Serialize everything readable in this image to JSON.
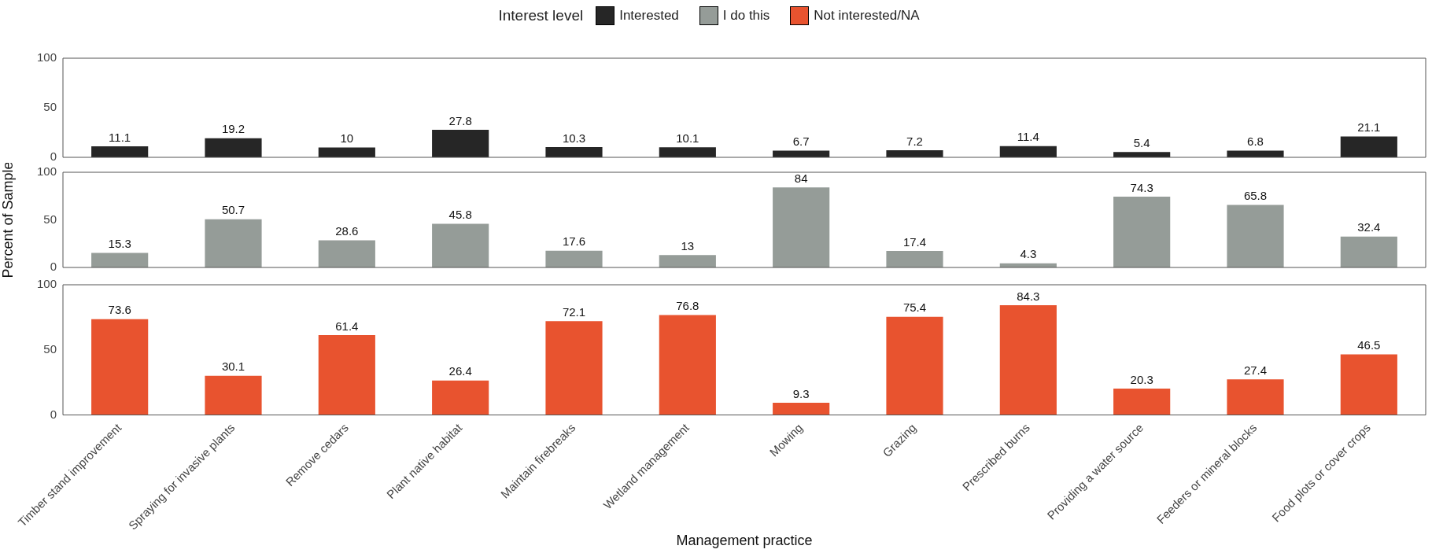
{
  "chart_data": [
    {
      "type": "bar",
      "legend": "top",
      "legend_title": "Interest level",
      "categories": [
        null,
        null,
        null,
        null,
        null,
        null,
        null,
        null,
        null,
        null,
        null,
        null
      ],
      "series": [
        {
          "name": "Interested",
          "color": "#262626",
          "values": [
            11.1,
            19.2,
            10,
            27.8,
            10.3,
            10.1,
            6.7,
            7.2,
            11.4,
            5.4,
            6.8,
            21.1
          ]
        }
      ],
      "ylim": [
        0,
        100
      ],
      "yticks": [
        0,
        50,
        100
      ],
      "tick_labels": "y",
      "data_labels": true
    },
    {
      "type": "bar",
      "ylabel": "Percent of Sample",
      "categories": [
        null,
        null,
        null,
        null,
        null,
        null,
        null,
        null,
        null,
        null,
        null,
        null
      ],
      "series": [
        {
          "name": "I do this",
          "color": "#959c98",
          "values": [
            15.3,
            50.7,
            28.6,
            45.8,
            17.6,
            13,
            84,
            17.4,
            4.3,
            74.3,
            65.8,
            32.4
          ]
        }
      ],
      "ylim": [
        0,
        100
      ],
      "yticks": [
        0,
        50,
        100
      ],
      "tick_labels": "y",
      "data_labels": true
    },
    {
      "type": "bar",
      "xlabel": "Management practice",
      "categories": [
        "Timber stand improvement",
        "Spraying for invasive plants",
        "Remove cedars",
        "Plant native habitat",
        "Maintain firebreaks",
        "Wetland management",
        "Mowing",
        "Grazing",
        "Prescribed burns",
        "Providing a water source",
        "Feeders or mineral blocks",
        "Food plots or cover crops"
      ],
      "series": [
        {
          "name": "Not interested/NA",
          "color": "#e8532f",
          "values": [
            73.6,
            30.1,
            61.4,
            26.4,
            72.1,
            76.8,
            9.3,
            75.4,
            84.3,
            20.3,
            27.4,
            46.5
          ]
        }
      ],
      "ylim": [
        0,
        100
      ],
      "yticks": [
        0,
        50,
        100
      ],
      "data_labels": true
    }
  ]
}
